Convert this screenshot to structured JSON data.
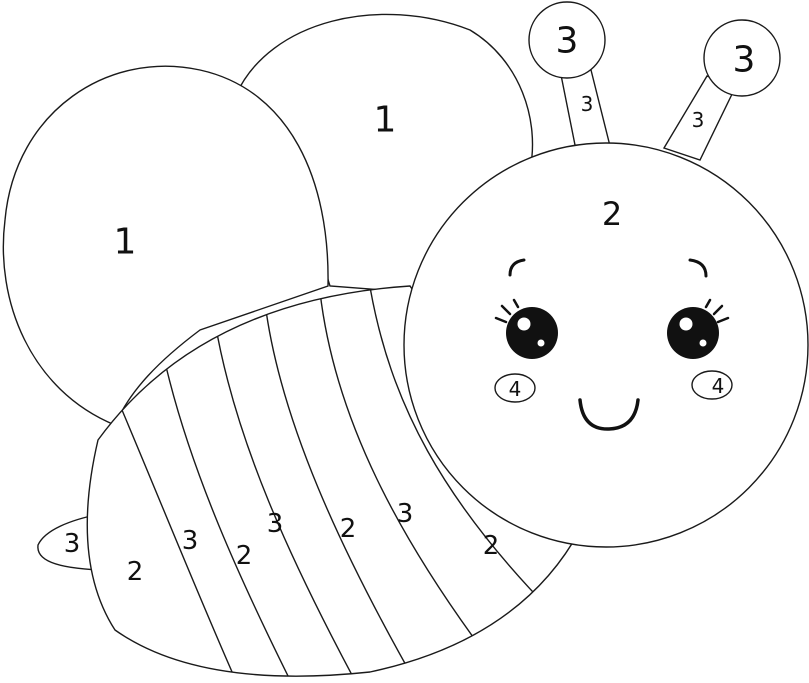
{
  "title": "Bee color-by-number page",
  "colors": {
    "ink": "#111111",
    "paper": "#ffffff"
  },
  "labels": {
    "wing_back": "1",
    "wing_front": "1",
    "head": "2",
    "antenna_left_ball": "3",
    "antenna_right_ball": "3",
    "antenna_left_stem": "3",
    "antenna_right_stem": "3",
    "cheek_left": "4",
    "cheek_right": "4",
    "stinger": "3",
    "body_stripes": [
      "2",
      "3",
      "2",
      "3",
      "2",
      "3",
      "2"
    ]
  }
}
